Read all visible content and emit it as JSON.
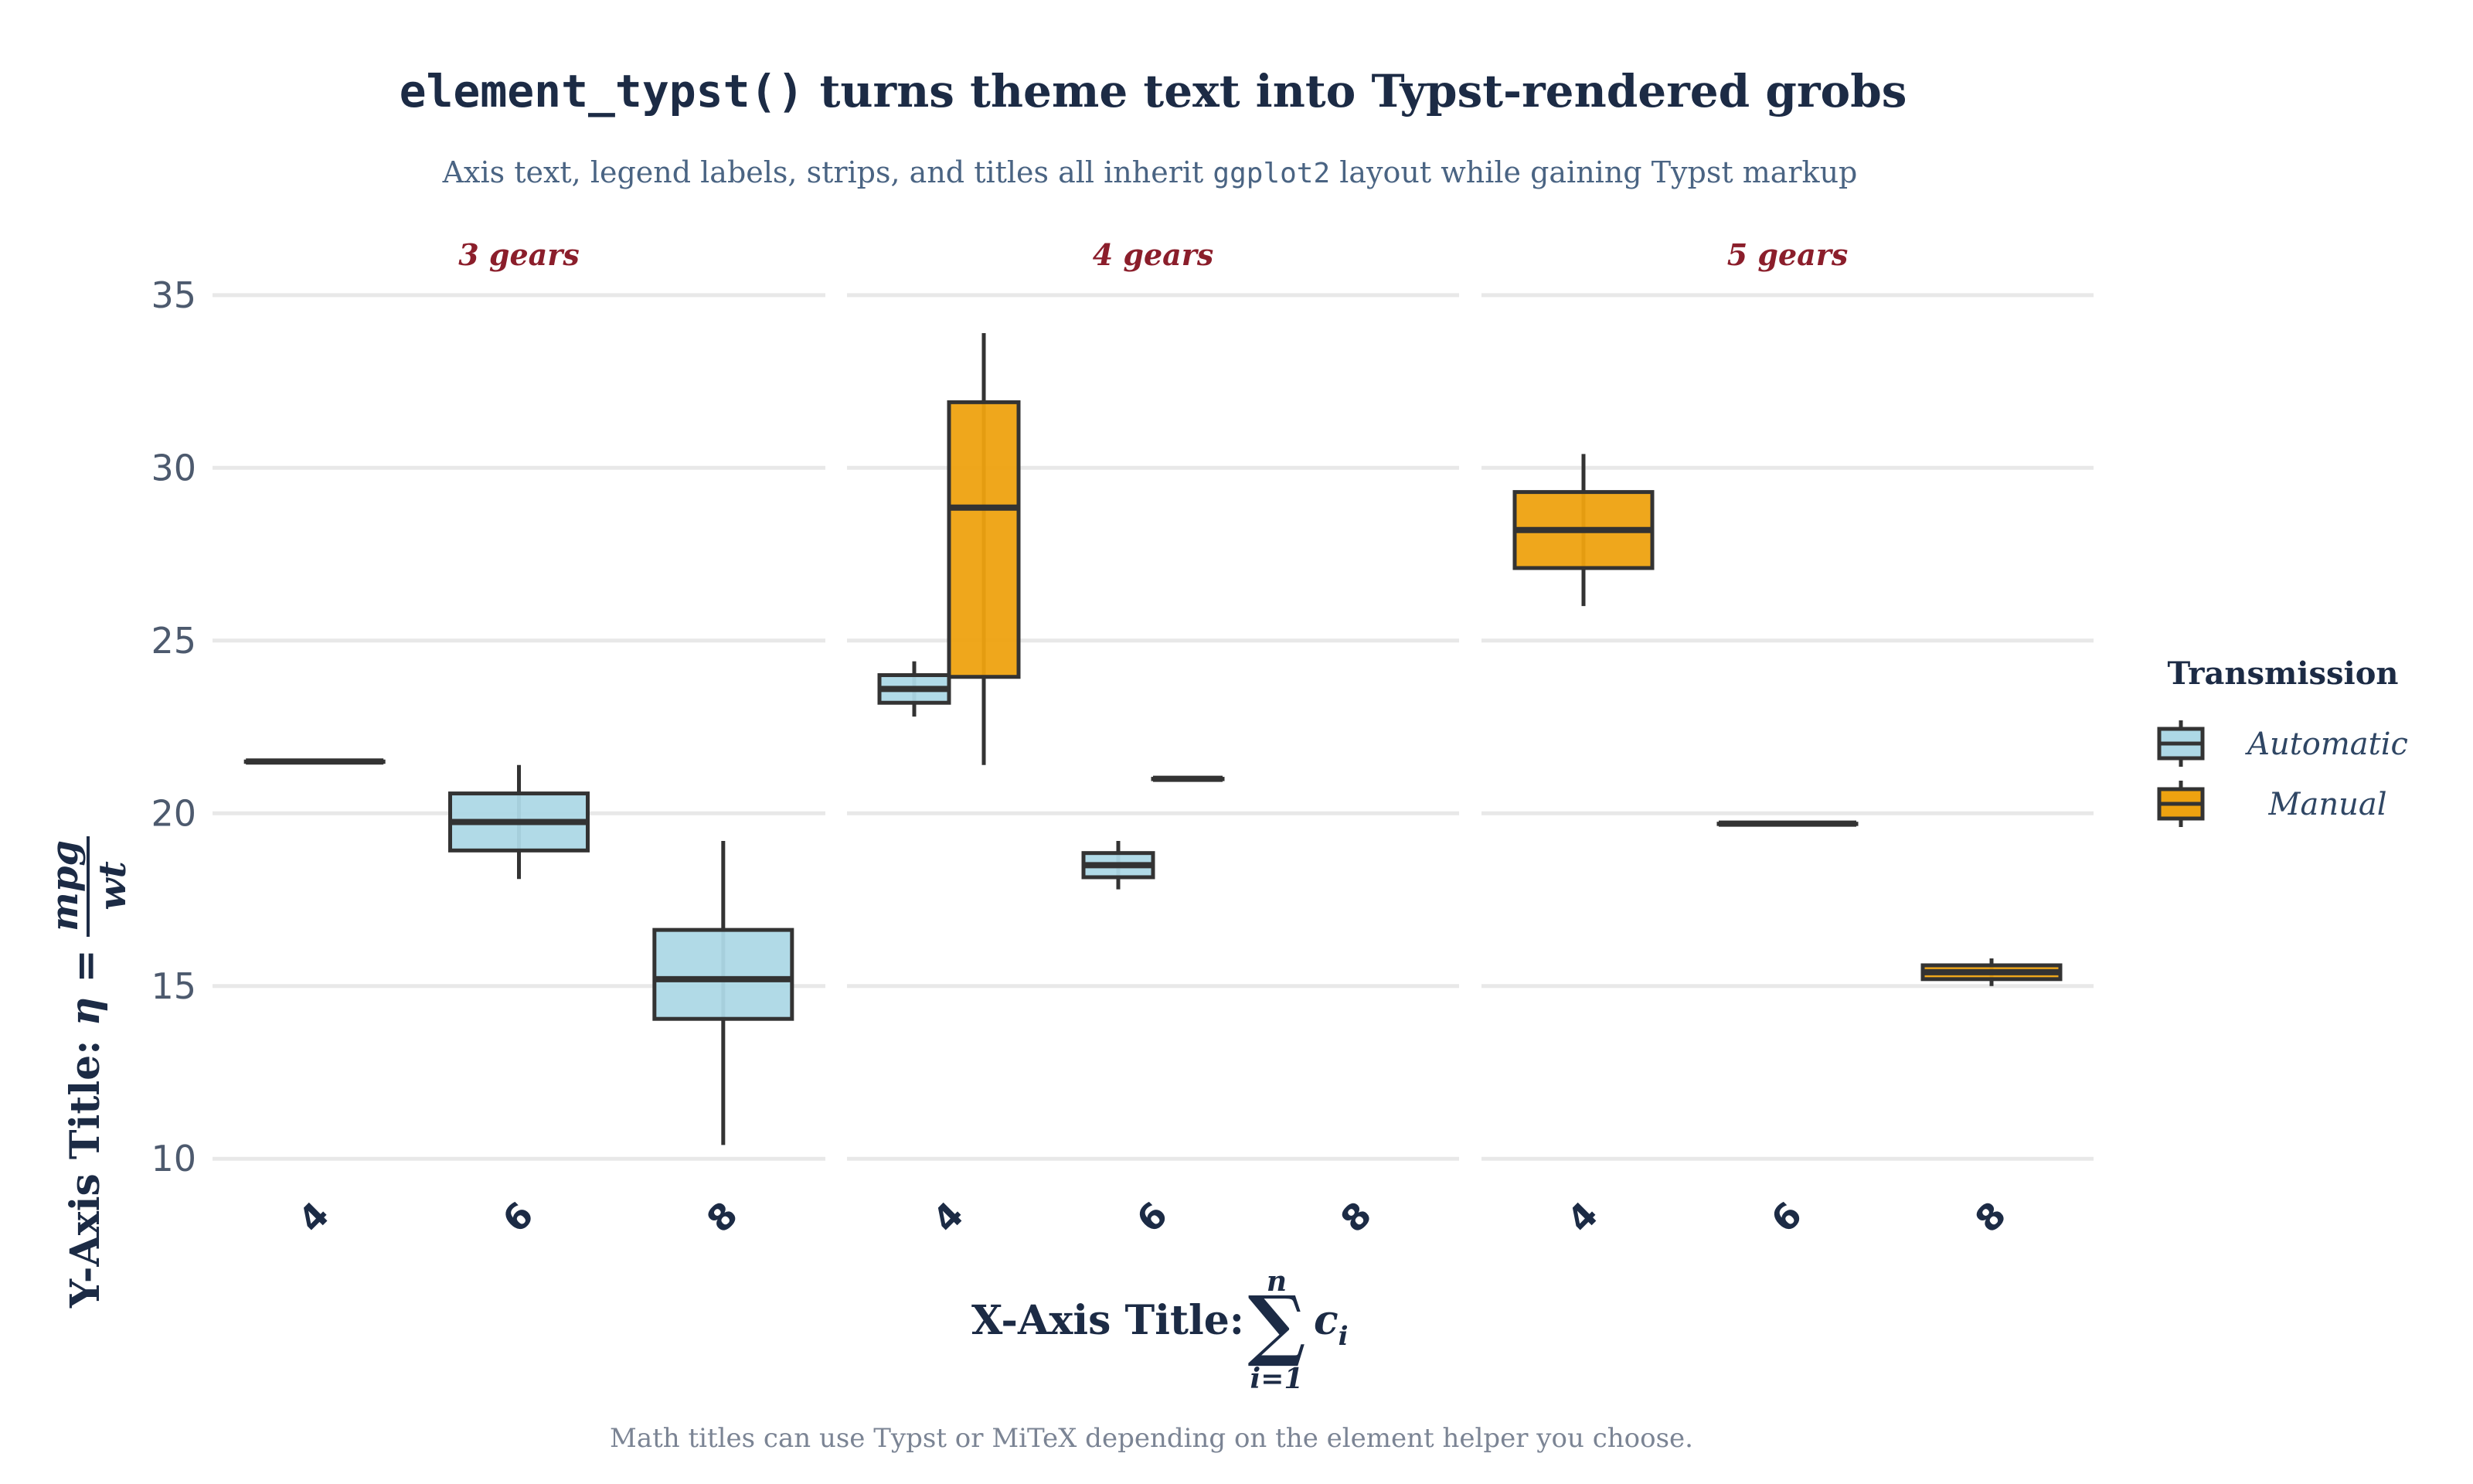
{
  "chart_data": {
    "type": "boxplot",
    "title_code": "element_typst()",
    "title_rest": " turns theme text into Typst-rendered grobs",
    "subtitle_pre": "Axis text, legend labels, strips, and titles all inherit ",
    "subtitle_code": "ggplot2",
    "subtitle_post": " layout while gaining Typst markup",
    "caption": "Math titles can use Typst or MiTeX depending on the element helper you choose.",
    "ylabel_text": "Y-Axis Title: ",
    "ylabel_math_lhs": "η =",
    "ylabel_frac_num": "mpg",
    "ylabel_frac_den": "wt",
    "xlabel_text": "X-Axis Title:",
    "xlabel_sum_upper": "n",
    "xlabel_sum_lower": "i=1",
    "xlabel_sum_symbol": "∑",
    "xlabel_sum_term": "c",
    "xlabel_sum_term_sub": "i",
    "ylim": [
      9.2,
      35.6
    ],
    "yticks": [
      10,
      15,
      20,
      25,
      30,
      35
    ],
    "categories": [
      "4",
      "6",
      "8"
    ],
    "legend": {
      "title": "Transmission",
      "position": "right",
      "entries": [
        {
          "label": "Automatic",
          "color": "#add8e6"
        },
        {
          "label": "Manual",
          "color": "#eea210"
        }
      ]
    },
    "colors": {
      "Automatic": "#add8e6",
      "Manual": "#eea210",
      "strip": "#8b1e2b",
      "grid": "#e8e8e8",
      "box_line": "#333333"
    },
    "panels": [
      {
        "strip": "3 gears",
        "boxes": [
          {
            "cyl": "4",
            "series": "Automatic",
            "lower_whisker": 21.5,
            "q1": 21.5,
            "median": 21.5,
            "q3": 21.5,
            "upper_whisker": 21.5
          },
          {
            "cyl": "6",
            "series": "Automatic",
            "lower_whisker": 18.1,
            "q1": 18.925,
            "median": 19.75,
            "q3": 20.575,
            "upper_whisker": 21.4
          },
          {
            "cyl": "8",
            "series": "Automatic",
            "lower_whisker": 10.4,
            "q1": 14.05,
            "median": 15.2,
            "q3": 16.625,
            "upper_whisker": 19.2
          }
        ]
      },
      {
        "strip": "4 gears",
        "boxes": [
          {
            "cyl": "4",
            "series": "Automatic",
            "lower_whisker": 22.8,
            "q1": 23.2,
            "median": 23.6,
            "q3": 24.0,
            "upper_whisker": 24.4
          },
          {
            "cyl": "4",
            "series": "Manual",
            "lower_whisker": 21.4,
            "q1": 23.95,
            "median": 28.85,
            "q3": 31.9,
            "upper_whisker": 33.9
          },
          {
            "cyl": "6",
            "series": "Automatic",
            "lower_whisker": 17.8,
            "q1": 18.15,
            "median": 18.5,
            "q3": 18.85,
            "upper_whisker": 19.2
          },
          {
            "cyl": "6",
            "series": "Manual",
            "lower_whisker": 21.0,
            "q1": 21.0,
            "median": 21.0,
            "q3": 21.0,
            "upper_whisker": 21.0
          }
        ]
      },
      {
        "strip": "5 gears",
        "boxes": [
          {
            "cyl": "4",
            "series": "Manual",
            "lower_whisker": 26.0,
            "q1": 27.1,
            "median": 28.2,
            "q3": 29.3,
            "upper_whisker": 30.4
          },
          {
            "cyl": "6",
            "series": "Manual",
            "lower_whisker": 19.7,
            "q1": 19.7,
            "median": 19.7,
            "q3": 19.7,
            "upper_whisker": 19.7
          },
          {
            "cyl": "8",
            "series": "Manual",
            "lower_whisker": 15.0,
            "q1": 15.2,
            "median": 15.4,
            "q3": 15.6,
            "upper_whisker": 15.8
          }
        ]
      }
    ]
  }
}
